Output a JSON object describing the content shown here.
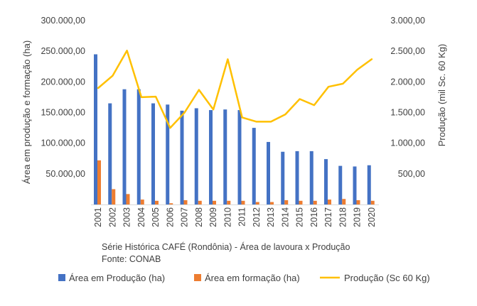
{
  "chart_data": {
    "type": "bar+line",
    "categories": [
      "2001",
      "2002",
      "2003",
      "2004",
      "2005",
      "2006",
      "2007",
      "2008",
      "2009",
      "2010",
      "2011",
      "2012",
      "2013",
      "2014",
      "2015",
      "2016",
      "2017",
      "2018",
      "2019",
      "2020"
    ],
    "series": [
      {
        "name": "Área em Produção (ha)",
        "type": "bar",
        "axis": "left",
        "color": "#4472C4",
        "values": [
          245000,
          165000,
          188000,
          188000,
          165000,
          163000,
          153000,
          157000,
          154000,
          155000,
          154000,
          125000,
          102000,
          86000,
          87000,
          87000,
          74000,
          63000,
          62000,
          64000
        ]
      },
      {
        "name": "Área em formação (ha)",
        "type": "bar",
        "axis": "left",
        "color": "#ED7D31",
        "values": [
          72000,
          25000,
          17000,
          8000,
          6000,
          2000,
          7000,
          6000,
          6000,
          6000,
          6000,
          4000,
          4000,
          7000,
          6000,
          6000,
          8000,
          9000,
          7000,
          6000
        ]
      },
      {
        "name": "Produção (Sc 60 Kg)",
        "type": "line",
        "axis": "right",
        "color": "#FFC000",
        "values": [
          1900,
          2100,
          2510,
          1750,
          1760,
          1250,
          1500,
          1870,
          1550,
          2370,
          1420,
          1350,
          1350,
          1470,
          1720,
          1620,
          1920,
          1970,
          2200,
          2370
        ]
      }
    ],
    "left_axis": {
      "title": "Área em produção e formação (ha)",
      "ylim": [
        0,
        300000
      ],
      "ticks": [
        {
          "value": 50000,
          "label": "50.000,00"
        },
        {
          "value": 100000,
          "label": "100.000,00"
        },
        {
          "value": 150000,
          "label": "150.000,00"
        },
        {
          "value": 200000,
          "label": "200.000,00"
        },
        {
          "value": 250000,
          "label": "250.000,00"
        },
        {
          "value": 300000,
          "label": "300.000,00"
        }
      ]
    },
    "right_axis": {
      "title": "Produção (mil Sc. 60 Kg)",
      "ylim": [
        0,
        3000
      ],
      "ticks": [
        {
          "value": 500,
          "label": "500,00"
        },
        {
          "value": 1000,
          "label": "1.000,00"
        },
        {
          "value": 1500,
          "label": "1.500,00"
        },
        {
          "value": 2000,
          "label": "2.000,00"
        },
        {
          "value": 2500,
          "label": "2.500,00"
        },
        {
          "value": 3000,
          "label": "3.000,00"
        }
      ]
    },
    "caption": {
      "line1": "Série Histórica CAFÉ (Rondônia) - Área de lavoura x Produção",
      "line2": "Fonte: CONAB"
    },
    "legend": {
      "position": "bottom",
      "items": [
        "Área em Produção (ha)",
        "Área em formação (ha)",
        "Produção (Sc 60 Kg)"
      ]
    },
    "grid": false
  }
}
